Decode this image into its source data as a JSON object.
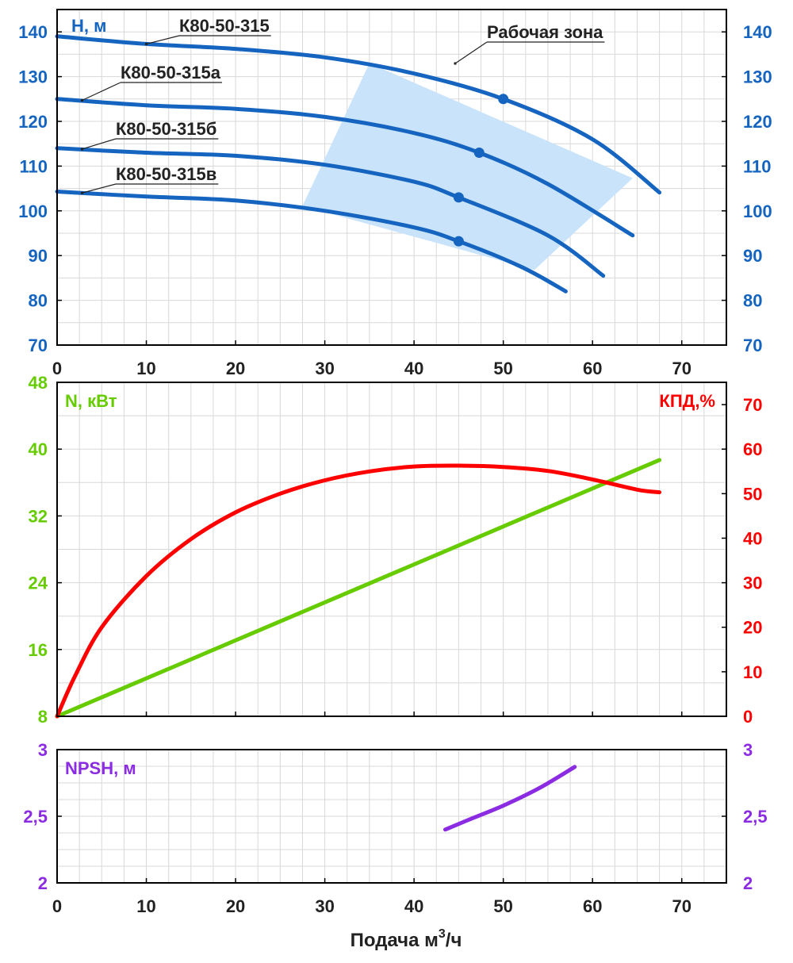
{
  "colors": {
    "head": "#1565C0",
    "power": "#66CC00",
    "efficiency": "#FF0000",
    "npsh": "#8B2BE2",
    "zone": "#C9E3FA",
    "grid": "#D8D8D8",
    "text": "#222222"
  },
  "xlabel_main": "Подача м",
  "xlabel_sup": "3",
  "xlabel_tail": "/ч",
  "chart_data": [
    {
      "type": "line",
      "title": "H, м",
      "xlim": [
        0,
        75
      ],
      "ylim": [
        70,
        145
      ],
      "x_ticks": [
        0,
        10,
        20,
        30,
        40,
        50,
        60,
        70
      ],
      "y_ticks": [
        70,
        80,
        90,
        100,
        110,
        120,
        130,
        140
      ],
      "y_tick_labels": [
        "70",
        "80",
        "90",
        "100",
        "110",
        "120",
        "130",
        "140"
      ],
      "grid": true,
      "working_zone_label": "Рабочая зона",
      "working_zone": [
        [
          35,
          133
        ],
        [
          64.5,
          107.3
        ],
        [
          53.5,
          86.8
        ],
        [
          27.5,
          101.1
        ]
      ],
      "series": [
        {
          "name": "К80-50-315",
          "x": [
            0,
            10,
            20,
            30,
            40,
            50,
            60,
            67.5
          ],
          "y": [
            139,
            137.3,
            136.2,
            134.3,
            130.7,
            125.0,
            116.0,
            104.1
          ],
          "marker": {
            "x": 50,
            "y": 125
          },
          "label_anchor": {
            "x": 10,
            "y": 137.3
          }
        },
        {
          "name": "К80-50-315а",
          "x": [
            0,
            10,
            20,
            30,
            40,
            47.3,
            55,
            64.5
          ],
          "y": [
            125,
            123.6,
            122.8,
            121.0,
            117.4,
            113.0,
            106.0,
            94.5
          ],
          "marker": {
            "x": 47.3,
            "y": 113
          },
          "label_anchor": {
            "x": 2.8,
            "y": 124.7
          }
        },
        {
          "name": "К80-50-315б",
          "x": [
            0,
            10,
            20,
            30,
            40,
            45,
            55,
            61.2
          ],
          "y": [
            114,
            113.0,
            112.3,
            110.3,
            106.5,
            103.0,
            94.5,
            85.5
          ],
          "marker": {
            "x": 45,
            "y": 103
          },
          "label_anchor": {
            "x": 2.8,
            "y": 113.8
          }
        },
        {
          "name": "К80-50-315в",
          "x": [
            0,
            10,
            20,
            30,
            40,
            45,
            52,
            57
          ],
          "y": [
            104.3,
            103.2,
            102.3,
            100.0,
            96.3,
            93.2,
            87.5,
            82.0
          ],
          "marker": {
            "x": 45,
            "y": 93.2
          },
          "label_anchor": {
            "x": 2.8,
            "y": 104.0
          }
        }
      ]
    },
    {
      "type": "line",
      "xlim": [
        0,
        75
      ],
      "x_ticks": [
        0,
        10,
        20,
        30,
        40,
        50,
        60,
        70
      ],
      "grid": true,
      "left_axis": {
        "title": "N, кВт",
        "ylim": [
          8,
          48
        ],
        "ticks": [
          8,
          16,
          24,
          32,
          40,
          48
        ]
      },
      "right_axis": {
        "title": "КПД,%",
        "ylim": [
          0,
          75
        ],
        "ticks": [
          0,
          10,
          20,
          30,
          40,
          50,
          60,
          70
        ]
      },
      "series": [
        {
          "name": "N",
          "axis": "left",
          "x": [
            0,
            67.5
          ],
          "y": [
            8,
            38.7
          ]
        },
        {
          "name": "КПД",
          "axis": "right",
          "x": [
            0,
            2,
            5,
            10,
            15,
            20,
            25,
            30,
            35,
            40,
            45,
            50,
            55,
            60,
            65,
            67.5
          ],
          "y": [
            0,
            9,
            20,
            31.5,
            39.8,
            45.8,
            50.0,
            53.0,
            55.0,
            56.1,
            56.3,
            56.0,
            55.1,
            53.2,
            50.9,
            50.3
          ]
        }
      ]
    },
    {
      "type": "line",
      "title": "NPSH, м",
      "xlabel": "Подача м³/ч",
      "xlim": [
        0,
        75
      ],
      "x_ticks": [
        0,
        10,
        20,
        30,
        40,
        50,
        60,
        70
      ],
      "ylim": [
        2,
        3
      ],
      "y_ticks": [
        2,
        2.5,
        3
      ],
      "y_tick_labels": [
        "2",
        "2,5",
        "3"
      ],
      "grid": true,
      "series": [
        {
          "name": "NPSH",
          "x": [
            43.5,
            46,
            50,
            54,
            58
          ],
          "y": [
            2.4,
            2.47,
            2.58,
            2.71,
            2.87
          ]
        }
      ]
    }
  ]
}
